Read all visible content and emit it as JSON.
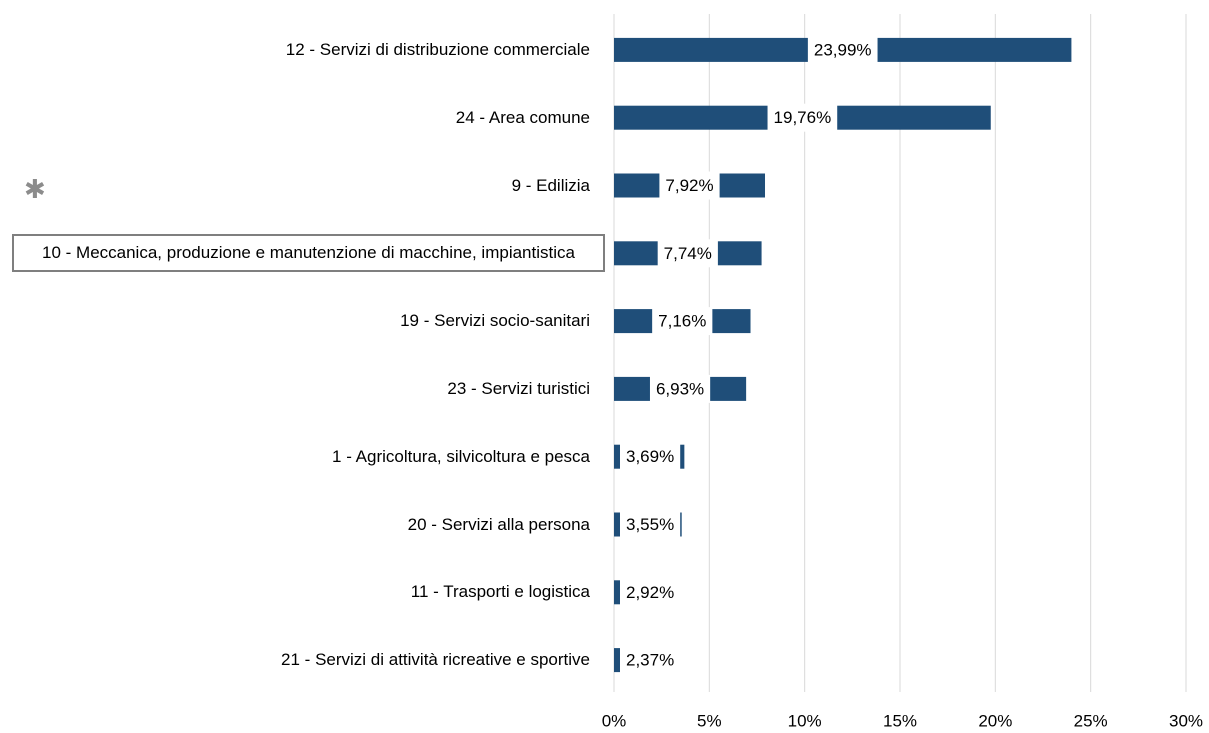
{
  "chart_data": {
    "type": "barh",
    "categories": [
      "12 - Servizi di distribuzione commerciale",
      "24 - Area comune",
      "9 - Edilizia",
      "10 - Meccanica, produzione e manutenzione di macchine, impiantistica",
      "19 - Servizi socio-sanitari",
      "23 - Servizi turistici",
      "1 - Agricoltura, silvicoltura e pesca",
      "20 - Servizi alla persona",
      "11 - Trasporti e logistica",
      "21 - Servizi di attività ricreative e sportive"
    ],
    "values": [
      23.99,
      19.76,
      7.92,
      7.74,
      7.16,
      6.93,
      3.69,
      3.55,
      2.92,
      2.37
    ],
    "value_labels": [
      "23,99%",
      "19,76%",
      "7,92%",
      "7,74%",
      "7,16%",
      "6,93%",
      "3,69%",
      "3,55%",
      "2,92%",
      "2,37%"
    ],
    "color": "#1f4e79",
    "xlim": [
      0,
      30
    ],
    "xticks": [
      {
        "value": 0,
        "label": "0%"
      },
      {
        "value": 5,
        "label": "5%"
      },
      {
        "value": 10,
        "label": "10%"
      },
      {
        "value": 15,
        "label": "15%"
      },
      {
        "value": 20,
        "label": "20%"
      },
      {
        "value": 25,
        "label": "25%"
      },
      {
        "value": 30,
        "label": "30%"
      }
    ],
    "grid": true,
    "highlight_marker": "✱",
    "highlighted_category_index": 3
  }
}
